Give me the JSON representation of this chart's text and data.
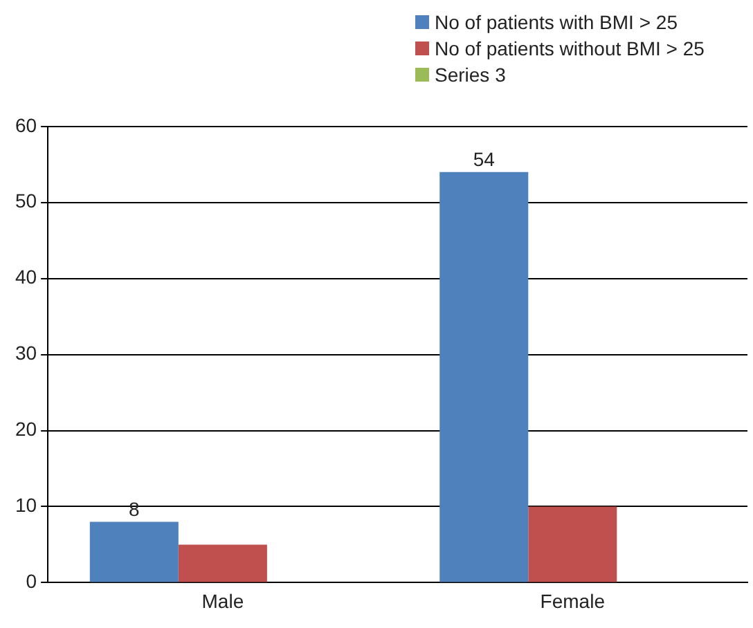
{
  "chart_data": {
    "type": "bar",
    "categories": [
      "Male",
      "Female"
    ],
    "series": [
      {
        "name": "No of patients with BMI > 25",
        "color": "#4f81bd",
        "values": [
          8,
          54
        ],
        "value_labels": [
          "8",
          "54"
        ]
      },
      {
        "name": "No of patients without BMI > 25",
        "color": "#c0504d",
        "values": [
          5,
          10
        ]
      },
      {
        "name": "Series 3",
        "color": "#9bbb59",
        "values": [
          null,
          null
        ]
      }
    ],
    "ylim": [
      0,
      60
    ],
    "yticks": [
      0,
      10,
      20,
      30,
      40,
      50,
      60
    ],
    "grid": "y",
    "legend": "top right"
  }
}
